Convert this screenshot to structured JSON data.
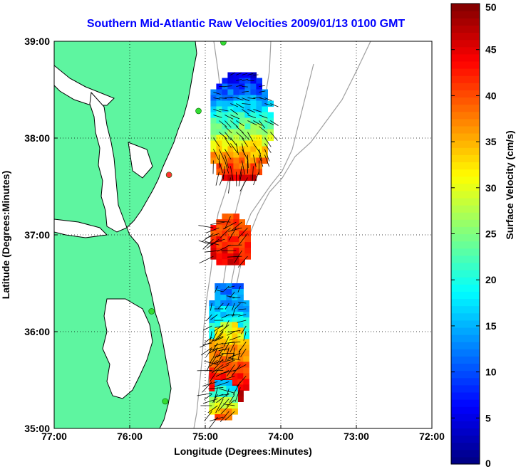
{
  "title": "Southern Mid-Atlantic Raw Velocities 2009/01/13 0100 GMT",
  "map": {
    "xlabel": "Longitude (Degrees:Minutes)",
    "ylabel": "Latitude (Degrees:Minutes)",
    "lon_range": [
      -77,
      -72
    ],
    "lat_range": [
      35,
      39
    ],
    "x_ticks": [
      {
        "value": -77,
        "label": "77:00"
      },
      {
        "value": -76,
        "label": "76:00"
      },
      {
        "value": -75,
        "label": "75:00"
      },
      {
        "value": -74,
        "label": "74:00"
      },
      {
        "value": -73,
        "label": "73:00"
      },
      {
        "value": -72,
        "label": "72:00"
      }
    ],
    "y_ticks": [
      {
        "value": 35,
        "label": "35:00"
      },
      {
        "value": 36,
        "label": "36:00"
      },
      {
        "value": 37,
        "label": "37:00"
      },
      {
        "value": 38,
        "label": "38:00"
      },
      {
        "value": 39,
        "label": "39:00"
      }
    ],
    "grid": "dotted",
    "colors": {
      "land": "#5ef5a0",
      "coast": "#000000",
      "bathymetry": "#a0a0a0",
      "station": "#33dd33",
      "station_alt": "#ff3333"
    },
    "stations": [
      {
        "lon": -74.76,
        "lat": 38.99
      },
      {
        "lon": -75.09,
        "lat": 38.28
      },
      {
        "lon": -75.48,
        "lat": 37.62
      },
      {
        "lon": -75.71,
        "lat": 36.21
      },
      {
        "lon": -75.53,
        "lat": 35.28
      }
    ],
    "velocity_patches": [
      {
        "region": "delaware-offshore",
        "lon_min": -74.93,
        "lon_max": -74.17,
        "lat_min": 37.6,
        "lat_max": 38.68,
        "speed_north": 5,
        "speed_south": 45
      },
      {
        "region": "chesapeake-mouth-offshore",
        "lon_min": -74.93,
        "lon_max": -74.43,
        "lat_min": 36.7,
        "lat_max": 37.22,
        "speed_north": 40,
        "speed_south": 45
      },
      {
        "region": "outer-banks-north",
        "lon_min": -74.95,
        "lon_max": -74.45,
        "lat_min": 35.72,
        "lat_max": 36.5,
        "speed_north": 12,
        "speed_south": 25
      },
      {
        "region": "outer-banks-south",
        "lon_min": -74.95,
        "lon_max": -74.45,
        "lat_min": 35.28,
        "lat_max": 36.1,
        "speed_north": 30,
        "speed_south": 48
      },
      {
        "region": "hatteras",
        "lon_min": -74.95,
        "lon_max": -74.6,
        "lat_min": 35.1,
        "lat_max": 35.5,
        "speed_north": 15,
        "speed_south": 42
      }
    ]
  },
  "colorbar": {
    "label": "Surface Velocity (cm/s)",
    "min": 0,
    "max": 50,
    "ticks": [
      0,
      5,
      10,
      15,
      20,
      25,
      30,
      35,
      40,
      45,
      50
    ],
    "colormap": "jet"
  }
}
